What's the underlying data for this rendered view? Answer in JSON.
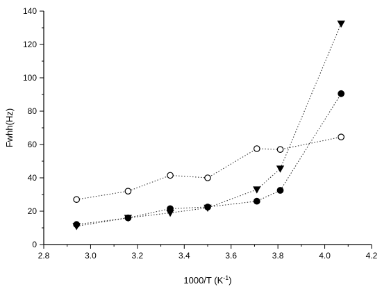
{
  "chart_data": {
    "type": "scatter",
    "title": "",
    "xlabel": "1000/T (K",
    "xlabel_sup": "-1",
    "xlabel_suffix": ")",
    "ylabel": "Fwhh(Hz)",
    "xlim": [
      2.8,
      4.2
    ],
    "ylim": [
      0,
      140
    ],
    "xticks": [
      "2.8",
      "3.0",
      "3.2",
      "3.4",
      "3.6",
      "3.8",
      "4.0",
      "4.2"
    ],
    "yticks": [
      "0",
      "20",
      "40",
      "60",
      "80",
      "100",
      "120",
      "140"
    ],
    "grid": false,
    "line_style": "dotted",
    "series": [
      {
        "marker": "open-circle",
        "color": "#000000",
        "x": [
          2.94,
          3.16,
          3.34,
          3.5,
          3.71,
          3.81,
          4.07
        ],
        "y": [
          27,
          32,
          41.5,
          40,
          57.5,
          57,
          64.5
        ]
      },
      {
        "marker": "filled-circle",
        "color": "#000000",
        "x": [
          2.94,
          3.16,
          3.34,
          3.5,
          3.71,
          3.81,
          4.07
        ],
        "y": [
          12,
          16,
          21.5,
          22.5,
          26,
          32.5,
          90.5
        ]
      },
      {
        "marker": "filled-triangle-down",
        "color": "#000000",
        "x": [
          2.94,
          3.16,
          3.34,
          3.5,
          3.71,
          3.81,
          4.07
        ],
        "y": [
          11,
          16,
          19,
          22,
          33,
          45.5,
          132.5
        ]
      }
    ]
  }
}
